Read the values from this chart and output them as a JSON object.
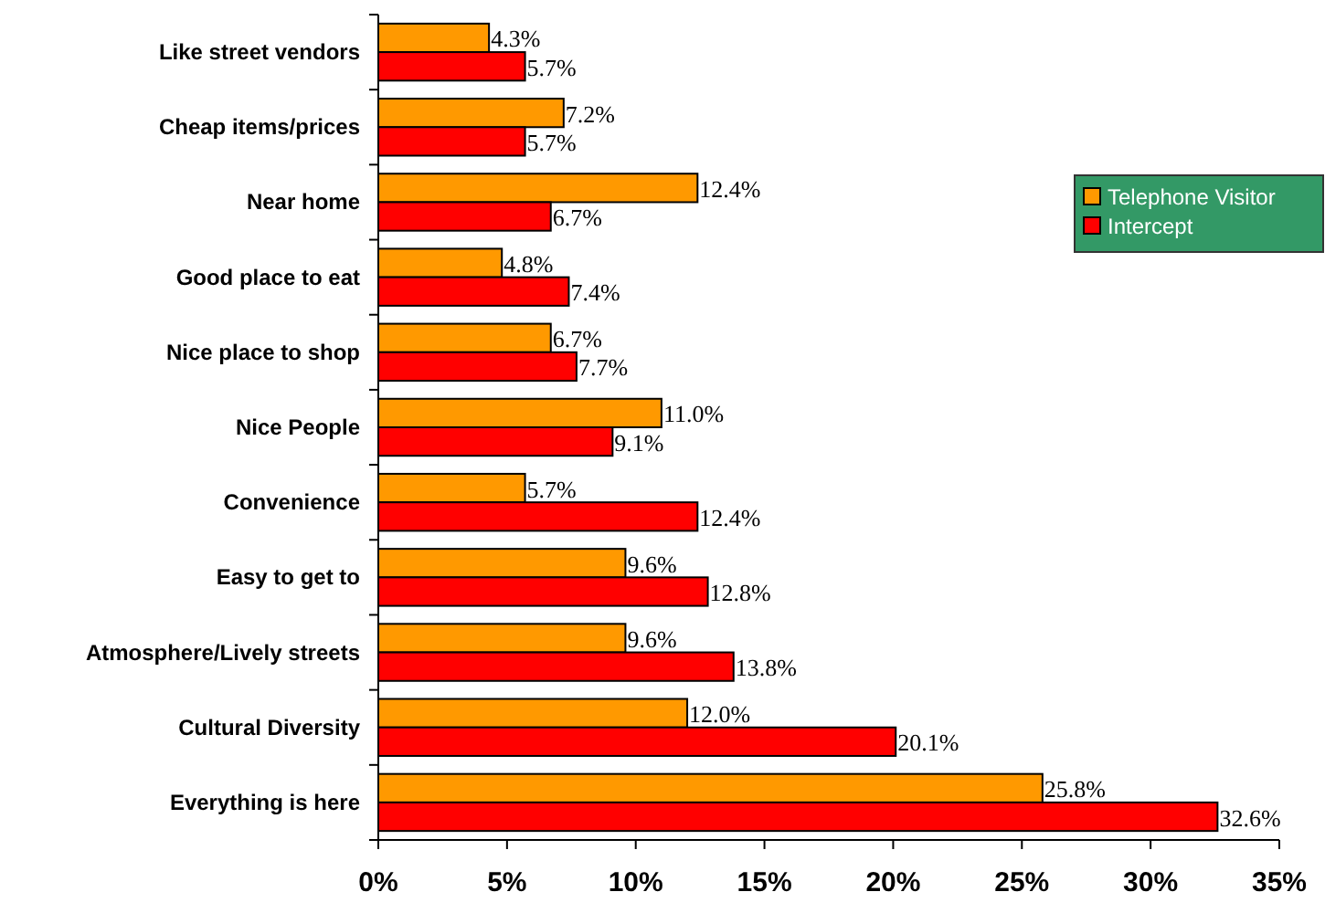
{
  "chart_data": {
    "type": "bar",
    "orientation": "horizontal",
    "categories": [
      "Like street vendors",
      "Cheap items/prices",
      "Near home",
      "Good place to eat",
      "Nice place to shop",
      "Nice People",
      "Convenience",
      "Easy to get to",
      "Atmosphere/Lively streets",
      "Cultural Diversity",
      "Everything is here"
    ],
    "series": [
      {
        "name": "Telephone Visitor",
        "color": "#ff9900",
        "values": [
          4.3,
          7.2,
          12.4,
          4.8,
          6.7,
          11.0,
          5.7,
          9.6,
          9.6,
          12.0,
          25.8
        ],
        "value_labels": [
          "4.3%",
          "7.2%",
          "12.4%",
          "4.8%",
          "6.7%",
          "11.0%",
          "5.7%",
          "9.6%",
          "9.6%",
          "12.0%",
          "25.8%"
        ]
      },
      {
        "name": "Intercept",
        "color": "#ff0000",
        "values": [
          5.7,
          5.7,
          6.7,
          7.4,
          7.7,
          9.1,
          12.4,
          12.8,
          13.8,
          20.1,
          32.6
        ],
        "value_labels": [
          "5.7%",
          "5.7%",
          "6.7%",
          "7.4%",
          "7.7%",
          "9.1%",
          "12.4%",
          "12.8%",
          "13.8%",
          "20.1%",
          "32.6%"
        ]
      }
    ],
    "xlim": [
      0,
      35
    ],
    "xticks": [
      {
        "value": 0,
        "label": "0%"
      },
      {
        "value": 5,
        "label": "5%"
      },
      {
        "value": 10,
        "label": "10%"
      },
      {
        "value": 15,
        "label": "15%"
      },
      {
        "value": 20,
        "label": "20%"
      },
      {
        "value": 25,
        "label": "25%"
      },
      {
        "value": 30,
        "label": "30%"
      },
      {
        "value": 35,
        "label": "35%"
      }
    ],
    "grid": false,
    "legend": "right"
  }
}
